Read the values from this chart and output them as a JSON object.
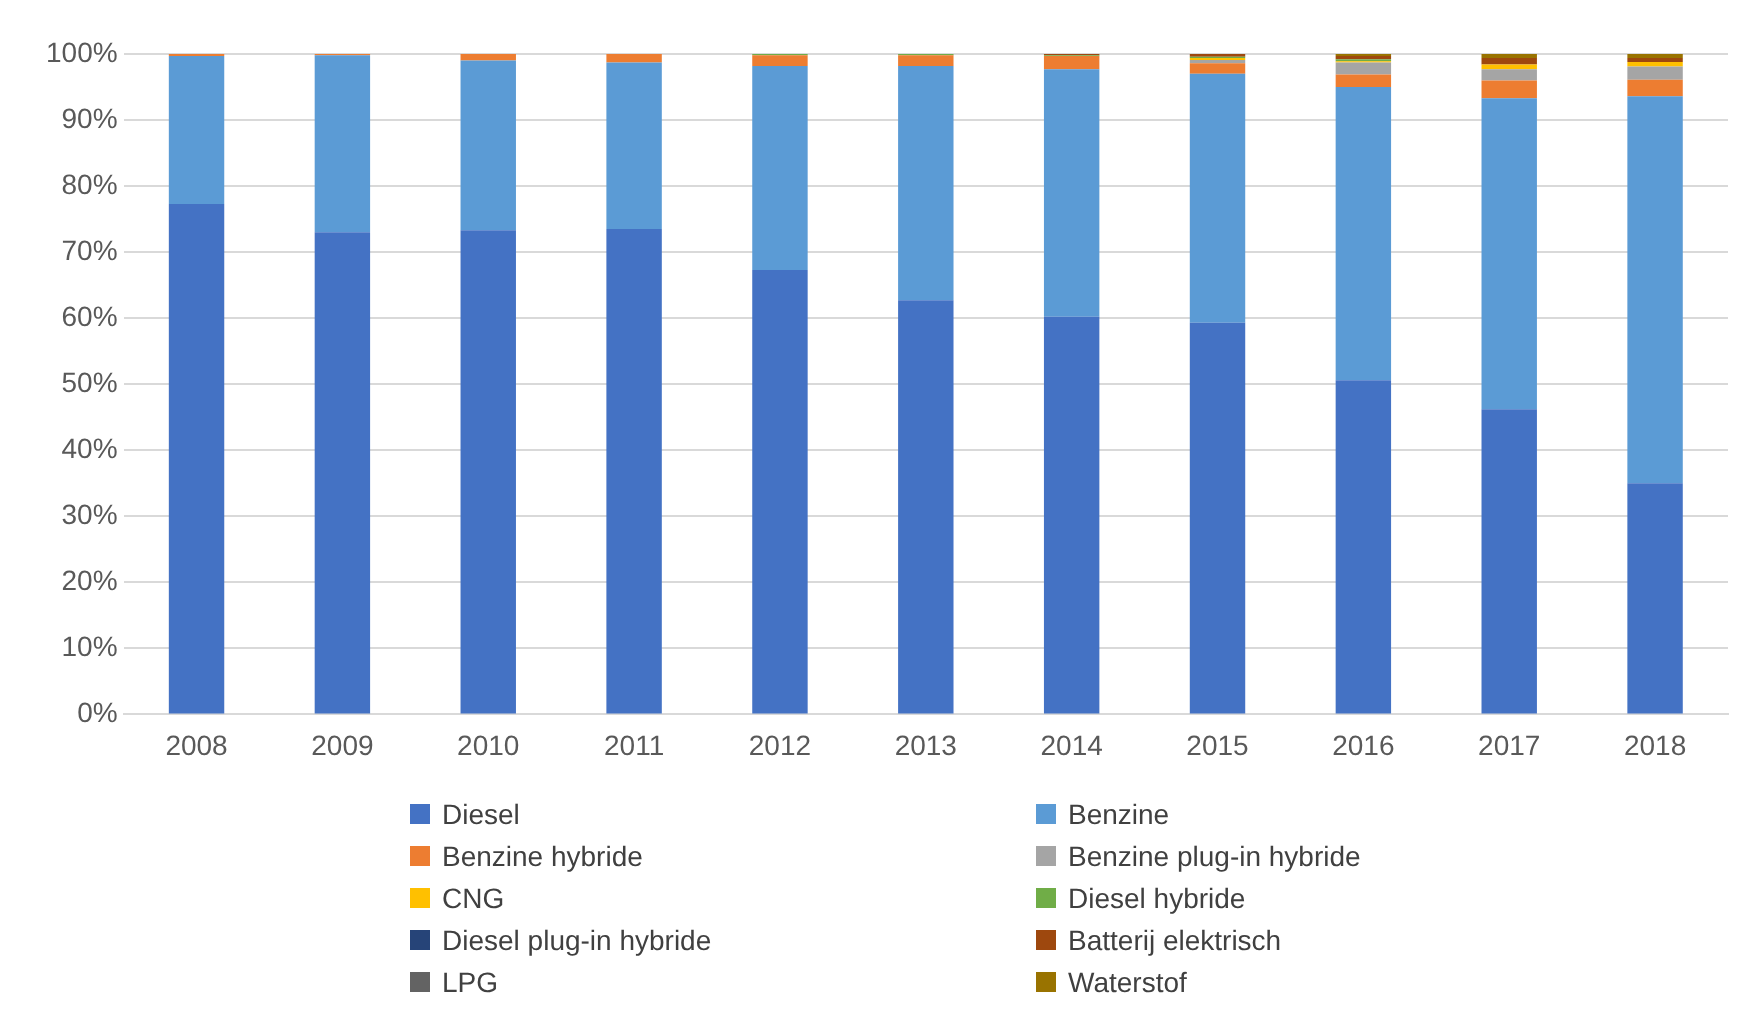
{
  "chart_data": {
    "type": "bar",
    "stacked": true,
    "categories": [
      "2008",
      "2009",
      "2010",
      "2011",
      "2012",
      "2013",
      "2014",
      "2015",
      "2016",
      "2017",
      "2018"
    ],
    "ylim": [
      0,
      100
    ],
    "yticks": [
      {
        "value": 0,
        "label": "0%"
      },
      {
        "value": 10,
        "label": "10%"
      },
      {
        "value": 20,
        "label": "20%"
      },
      {
        "value": 30,
        "label": "30%"
      },
      {
        "value": 40,
        "label": "40%"
      },
      {
        "value": 50,
        "label": "50%"
      },
      {
        "value": 60,
        "label": "60%"
      },
      {
        "value": 70,
        "label": "70%"
      },
      {
        "value": 80,
        "label": "80%"
      },
      {
        "value": 90,
        "label": "90%"
      },
      {
        "value": 100,
        "label": "100%"
      }
    ],
    "grid": "y",
    "legend": "bottom",
    "series": [
      {
        "name": "Diesel",
        "color": "#4472c4",
        "values": [
          77.3,
          73,
          73.3,
          73.5,
          67.3,
          62.7,
          60.2,
          59.3,
          50.6,
          46.2,
          35
        ]
      },
      {
        "name": "Benzine",
        "color": "#5b9bd5",
        "values": [
          22.4,
          26.8,
          25.7,
          25.2,
          30.9,
          35.5,
          37.5,
          37.7,
          44.4,
          47.1,
          58.6
        ]
      },
      {
        "name": "Benzine hybride",
        "color": "#ed7d31",
        "values": [
          0.3,
          0.2,
          1.0,
          1.3,
          1.6,
          1.6,
          2.0,
          1.6,
          1.9,
          2.7,
          2.5
        ]
      },
      {
        "name": "Benzine plug-in hybride",
        "color": "#a5a5a5",
        "values": [
          0,
          0,
          0,
          0,
          0,
          0,
          0,
          0.5,
          1.8,
          1.7,
          2.0
        ]
      },
      {
        "name": "CNG",
        "color": "#ffc000",
        "values": [
          0,
          0,
          0,
          0,
          0,
          0,
          0,
          0.3,
          0.2,
          0.7,
          0.7
        ]
      },
      {
        "name": "Diesel hybride",
        "color": "#70ad47",
        "values": [
          0,
          0,
          0,
          0,
          0.2,
          0.2,
          0.1,
          0.2,
          0.3,
          0,
          0
        ]
      },
      {
        "name": "Diesel plug-in hybride",
        "color": "#264478",
        "values": [
          0,
          0,
          0,
          0,
          0,
          0,
          0,
          0,
          0,
          0,
          0
        ]
      },
      {
        "name": "Batterij elektrisch",
        "color": "#9e480e",
        "values": [
          0,
          0,
          0,
          0,
          0,
          0,
          0.2,
          0.4,
          0.5,
          1.0,
          0.6
        ]
      },
      {
        "name": "LPG",
        "color": "#636363",
        "values": [
          0,
          0,
          0,
          0,
          0,
          0,
          0,
          0,
          0,
          0,
          0
        ]
      },
      {
        "name": "Waterstof",
        "color": "#997300",
        "values": [
          0,
          0,
          0,
          0,
          0,
          0,
          0,
          0,
          0.3,
          0.6,
          0.6
        ]
      }
    ]
  }
}
